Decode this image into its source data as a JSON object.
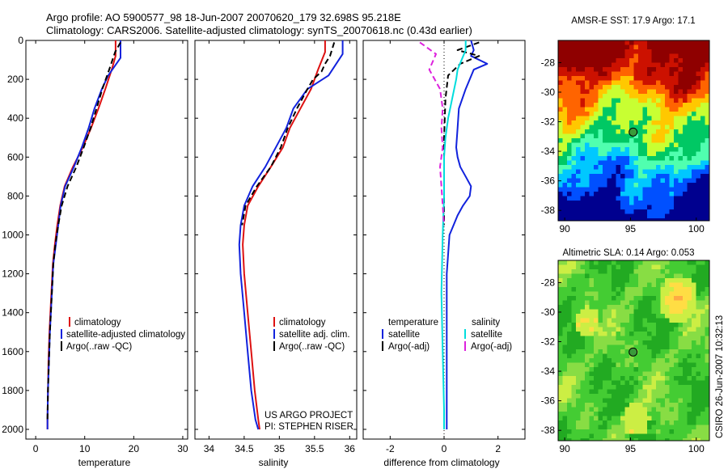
{
  "figure": {
    "title_line1": "Argo profile: AO 5900577_98 18-Jun-2007 20070620_179 32.698S 95.218E",
    "title_line2": "Climatology: CARS2006. Satellite-adjusted climatology: synTS_20070618.nc (0.43d earlier)",
    "credit_line1": "US ARGO PROJECT",
    "credit_line2": "PI: STEPHEN RISER",
    "timestamp": "CSIRO 26-Jun-2007 10:32:13"
  },
  "colors": {
    "climatology": "#dd1111",
    "satellite": "#1122dd",
    "argo": "#000000",
    "salinity_satellite": "#00dddd",
    "salinity_argo": "#dd22dd"
  },
  "chart_data": [
    {
      "id": "temperature",
      "type": "line",
      "xlabel": "temperature",
      "ylabel": "",
      "xlim": [
        -2,
        31
      ],
      "ylim": [
        2050,
        0
      ],
      "xticks": [
        "0",
        "10",
        "20",
        "30"
      ],
      "xtick_values": [
        0,
        10,
        20,
        30
      ],
      "yticks": [
        "0",
        "200",
        "400",
        "600",
        "800",
        "1000",
        "1200",
        "1400",
        "1600",
        "1800",
        "2000"
      ],
      "ytick_values": [
        0,
        200,
        400,
        600,
        800,
        1000,
        1200,
        1400,
        1600,
        1800,
        2000
      ],
      "legend": [
        "climatology",
        "satellite-adjusted climatology",
        "Argo(..raw -QC)"
      ],
      "series": [
        {
          "name": "climatology",
          "color": "#dd1111",
          "dash": "",
          "x": [
            16.3,
            16.3,
            15.5,
            14.2,
            12.8,
            11.3,
            9.6,
            7.6,
            5.9,
            5.0,
            4.4,
            3.9,
            3.5,
            3.2,
            3.0,
            2.8,
            2.6,
            2.5,
            2.4,
            2.4
          ],
          "y": [
            0,
            80,
            150,
            250,
            350,
            450,
            550,
            650,
            750,
            850,
            950,
            1050,
            1150,
            1300,
            1400,
            1500,
            1650,
            1800,
            1950,
            2000
          ]
        },
        {
          "name": "satellite-adjusted climatology",
          "color": "#1122dd",
          "dash": "",
          "x": [
            17.3,
            17.3,
            14.8,
            13.5,
            12.0,
            10.8,
            9.4,
            7.8,
            6.0,
            5.1,
            4.6,
            4.1,
            3.6,
            3.3,
            3.1,
            2.9,
            2.7,
            2.5,
            2.4,
            2.4
          ],
          "y": [
            0,
            90,
            180,
            250,
            350,
            450,
            550,
            650,
            750,
            850,
            950,
            1050,
            1150,
            1300,
            1400,
            1500,
            1650,
            1800,
            1950,
            2000
          ]
        },
        {
          "name": "Argo(..raw -QC)",
          "color": "#000000",
          "dash": "7,4",
          "x": [
            17.3,
            16.2,
            15.0,
            13.6,
            12.4,
            11.2,
            9.8,
            8.3,
            6.5,
            5.3,
            4.6,
            4.0,
            3.6,
            3.3,
            3.1,
            2.9,
            2.7,
            2.5,
            2.4
          ],
          "y": [
            10,
            60,
            150,
            250,
            350,
            450,
            550,
            650,
            750,
            850,
            950,
            1050,
            1150,
            1300,
            1400,
            1500,
            1650,
            1800,
            1950
          ]
        }
      ]
    },
    {
      "id": "salinity",
      "type": "line",
      "xlabel": "salinity",
      "ylabel": "",
      "xlim": [
        33.8,
        36.1
      ],
      "ylim": [
        2050,
        0
      ],
      "xticks": [
        "34",
        "34.5",
        "35",
        "35.5",
        "36"
      ],
      "xtick_values": [
        34,
        34.5,
        35,
        35.5,
        36
      ],
      "yticks": [],
      "ytick_values": [],
      "legend": [
        "climatology",
        "satellite adj. clim.",
        "Argo(..raw -QC)"
      ],
      "series": [
        {
          "name": "climatology",
          "color": "#dd1111",
          "dash": "",
          "x": [
            35.65,
            35.65,
            35.55,
            35.45,
            35.3,
            35.15,
            35.05,
            34.88,
            34.7,
            34.55,
            34.5,
            34.48,
            34.5,
            34.55,
            34.6,
            34.65,
            34.7,
            34.72
          ],
          "y": [
            0,
            60,
            150,
            250,
            350,
            450,
            550,
            650,
            750,
            850,
            950,
            1050,
            1200,
            1400,
            1600,
            1800,
            1950,
            2000
          ]
        },
        {
          "name": "satellite adj. clim.",
          "color": "#1122dd",
          "dash": "",
          "x": [
            35.9,
            35.9,
            35.7,
            35.4,
            35.2,
            35.1,
            34.95,
            34.8,
            34.62,
            34.5,
            34.45,
            34.43,
            34.45,
            34.5,
            34.55,
            34.6,
            34.66,
            34.7
          ],
          "y": [
            0,
            70,
            180,
            250,
            350,
            450,
            550,
            650,
            750,
            850,
            950,
            1050,
            1200,
            1400,
            1600,
            1800,
            1950,
            2000
          ]
        },
        {
          "name": "Argo(..raw -QC)",
          "color": "#000000",
          "dash": "7,4",
          "x": [
            35.78,
            35.72,
            35.65,
            35.6,
            35.48,
            35.4,
            35.25,
            35.12,
            35.02,
            34.88,
            34.68,
            34.52,
            34.47
          ],
          "y": [
            10,
            80,
            120,
            160,
            200,
            250,
            350,
            450,
            550,
            650,
            750,
            850,
            950
          ]
        }
      ]
    },
    {
      "id": "difference",
      "type": "line",
      "xlabel": "difference from climatology",
      "ylabel": "",
      "xlim": [
        -3,
        3
      ],
      "ylim": [
        2050,
        0
      ],
      "xticks": [
        "-2",
        "0",
        "2"
      ],
      "xtick_values": [
        -2,
        0,
        2
      ],
      "yticks": [],
      "ytick_values": [],
      "legend_headers": [
        "temperature",
        "salinity"
      ],
      "legend": [
        "satellite",
        "Argo(-adj)",
        "satellite",
        "Argo(-adj)"
      ],
      "series": [
        {
          "name": "temperature satellite",
          "color": "#1122dd",
          "dash": "",
          "x": [
            1.0,
            1.1,
            1.0,
            1.6,
            1.1,
            0.8,
            0.55,
            0.5,
            0.45,
            0.5,
            0.6,
            0.8,
            1.0,
            0.95,
            0.7,
            0.5,
            0.35,
            0.2,
            0.15,
            0.1,
            0.1,
            0.1,
            0.1,
            0.1
          ],
          "y": [
            0,
            50,
            80,
            120,
            150,
            250,
            350,
            450,
            550,
            600,
            650,
            700,
            750,
            800,
            850,
            900,
            950,
            1000,
            1100,
            1200,
            1400,
            1600,
            1800,
            2000
          ]
        },
        {
          "name": "temperature Argo(-adj)",
          "color": "#000000",
          "dash": "7,4",
          "x": [
            1.3,
            0.5,
            1.3,
            0.6,
            0.15,
            0.05,
            0.0,
            0.0,
            0.0,
            0.0
          ],
          "y": [
            10,
            50,
            80,
            120,
            180,
            300,
            500,
            650,
            800,
            950
          ]
        },
        {
          "name": "salinity satellite",
          "color": "#00dddd",
          "dash": "",
          "x": [
            0.8,
            0.8,
            0.65,
            0.5,
            0.45,
            0.3,
            0.15,
            0.05,
            0.0,
            0.0,
            -0.05,
            -0.1,
            -0.05,
            0.0,
            0.0
          ],
          "y": [
            0,
            50,
            100,
            150,
            200,
            300,
            400,
            500,
            600,
            800,
            1000,
            1300,
            1600,
            1900,
            2000
          ]
        },
        {
          "name": "salinity Argo(-adj)",
          "color": "#dd22dd",
          "dash": "7,4",
          "x": [
            -0.9,
            -0.3,
            -0.55,
            -0.15,
            -0.05,
            -0.1,
            -0.05,
            -0.15,
            -0.1,
            -0.05,
            0.0
          ],
          "y": [
            10,
            70,
            150,
            250,
            350,
            450,
            550,
            650,
            750,
            850,
            950
          ]
        }
      ]
    },
    {
      "id": "sst-map",
      "type": "heatmap",
      "title": "AMSR-E SST: 17.9  Argo: 17.1",
      "xlim": [
        89.5,
        101
      ],
      "ylim": [
        -38.7,
        -26.5
      ],
      "xticks": [
        "90",
        "95",
        "100"
      ],
      "xtick_values": [
        90,
        95,
        100
      ],
      "yticks": [
        "-28",
        "-30",
        "-32",
        "-34",
        "-36",
        "-38"
      ],
      "ytick_values": [
        -28,
        -30,
        -32,
        -34,
        -36,
        -38
      ],
      "float_position": [
        95.2,
        -32.7
      ],
      "colors": [
        "#00008f",
        "#0050ff",
        "#00c8ff",
        "#50ffaf",
        "#00c864",
        "#c8ff32",
        "#ffc800",
        "#ff6400",
        "#cc1100",
        "#8f0000"
      ]
    },
    {
      "id": "sla-map",
      "type": "heatmap",
      "title": "Altimetric SLA: 0.14  Argo: 0.053",
      "xlim": [
        89.5,
        101
      ],
      "ylim": [
        -38.7,
        -26.5
      ],
      "xticks": [
        "90",
        "95",
        "100"
      ],
      "xtick_values": [
        90,
        95,
        100
      ],
      "yticks": [
        "-28",
        "-30",
        "-32",
        "-34",
        "-36",
        "-38"
      ],
      "ytick_values": [
        -28,
        -30,
        -32,
        -34,
        -36,
        -38
      ],
      "float_position": [
        95.2,
        -32.7
      ],
      "colors": [
        "#22aa22",
        "#44cc33",
        "#88dd44",
        "#ccee44",
        "#ffdd44",
        "#ffaa44"
      ]
    }
  ]
}
